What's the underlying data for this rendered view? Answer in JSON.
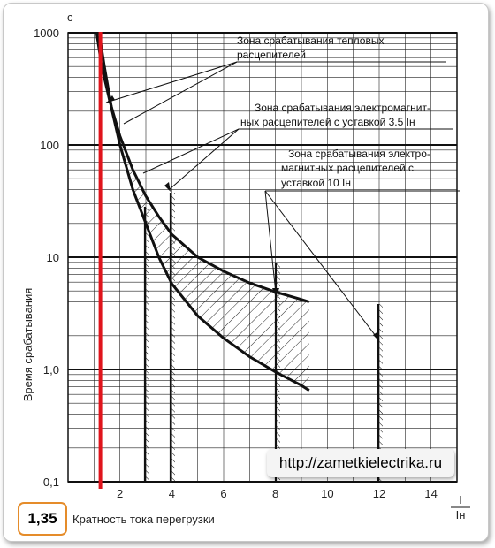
{
  "chart_data": {
    "type": "line",
    "xlabel": "Кратность тока перегрузки",
    "ylabel": "Время срабатывания",
    "y_unit": "c",
    "x_unit_numerator": "I",
    "x_unit_denominator": "Iн",
    "x_scale": "linear",
    "y_scale": "log",
    "xlim": [
      0,
      15
    ],
    "ylim": [
      0.1,
      1000
    ],
    "x_ticks": [
      "2",
      "4",
      "6",
      "8",
      "10",
      "12",
      "14"
    ],
    "y_ticks": [
      "0,1",
      "1,0",
      "10",
      "100",
      "1000"
    ],
    "grid": true,
    "series": [
      {
        "x": [
          1.1,
          1.3,
          1.6,
          2.0,
          2.5,
          3.0,
          3.5,
          4.0,
          5.0,
          6.0,
          7.0,
          8.0,
          9.0,
          9.3
        ],
        "y": [
          1000,
          500,
          250,
          120,
          60,
          35,
          23,
          16,
          10,
          7.5,
          5.9,
          4.9,
          4.2,
          4.0
        ]
      },
      {
        "x": [
          1.2,
          1.4,
          1.7,
          2.0,
          2.5,
          3.0,
          3.5,
          4.0,
          5.0,
          6.0,
          7.0,
          8.0,
          9.0,
          9.3
        ],
        "y": [
          1000,
          500,
          200,
          100,
          40,
          20,
          10,
          5.8,
          3.0,
          1.9,
          1.3,
          0.95,
          0.72,
          0.65
        ]
      }
    ],
    "annotations": [
      "Зона срабатывания тепловых расцепителей",
      "Зона срабатывания электромагнит-ных расцепителей с уставкой 3.5 Iн",
      "Зона срабатывания электро-магнитных расцепителей с уставкой 10 Iн"
    ],
    "marker_x": 1.35,
    "marker_label": "1,35",
    "watermark": "http://zametkielectrika.ru"
  }
}
